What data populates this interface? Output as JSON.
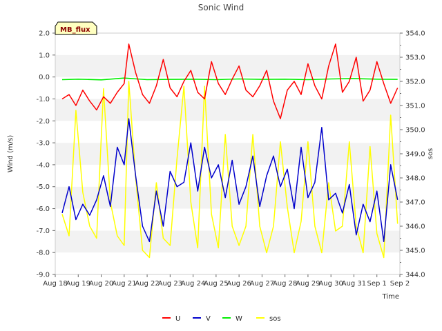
{
  "chart_data": {
    "type": "line",
    "title": "Sonic Wind",
    "badge": "MB_flux",
    "xlabel": "Time",
    "ylabel": "Wind (m/s)",
    "y2label": "sos",
    "x_tick_labels": [
      "Aug 18",
      "Aug 19",
      "Aug 20",
      "Aug 21",
      "Aug 22",
      "Aug 23",
      "Aug 24",
      "Aug 25",
      "Aug 26",
      "Aug 27",
      "Aug 28",
      "Aug 29",
      "Aug 30",
      "Aug 31",
      "Sep 1",
      "Sep 2"
    ],
    "ylim": [
      -9.0,
      2.0
    ],
    "y_ticks": [
      "-9.0",
      "-8.0",
      "-7.0",
      "-6.0",
      "-5.0",
      "-4.0",
      "-3.0",
      "-2.0",
      "-1.0",
      "0.0",
      "1.0",
      "2.0"
    ],
    "y2lim": [
      344.0,
      354.0
    ],
    "y2_ticks": [
      "344.0",
      "345.0",
      "346.0",
      "347.0",
      "348.0",
      "349.0",
      "350.0",
      "351.0",
      "352.0",
      "353.0",
      "354.0"
    ],
    "colors": {
      "U": "#ff0000",
      "V": "#0000cc",
      "W": "#00ee00",
      "sos": "#ffff00"
    },
    "series": [
      {
        "name": "U",
        "axis": "left",
        "x": [
          0.3,
          0.6,
          0.9,
          1.2,
          1.5,
          1.8,
          2.1,
          2.4,
          2.7,
          3.0,
          3.2,
          3.5,
          3.8,
          4.1,
          4.4,
          4.7,
          5.0,
          5.3,
          5.6,
          5.9,
          6.2,
          6.5,
          6.8,
          7.1,
          7.4,
          7.7,
          8.0,
          8.3,
          8.6,
          8.9,
          9.2,
          9.5,
          9.8,
          10.1,
          10.4,
          10.7,
          11.0,
          11.3,
          11.6,
          11.9,
          12.2,
          12.5,
          12.8,
          13.1,
          13.4,
          13.7,
          14.0,
          14.3,
          14.6,
          14.9
        ],
        "values": [
          -1.0,
          -0.8,
          -1.3,
          -0.6,
          -1.1,
          -1.5,
          -0.9,
          -1.2,
          -0.7,
          -0.3,
          1.5,
          0.2,
          -0.8,
          -1.2,
          -0.4,
          0.8,
          -0.5,
          -0.9,
          -0.2,
          0.3,
          -0.7,
          -1.0,
          0.7,
          -0.3,
          -0.8,
          -0.1,
          0.5,
          -0.6,
          -0.9,
          -0.4,
          0.3,
          -1.1,
          -1.9,
          -0.6,
          -0.2,
          -0.8,
          0.6,
          -0.4,
          -1.0,
          0.5,
          1.5,
          -0.7,
          -0.2,
          0.9,
          -1.1,
          -0.6,
          0.7,
          -0.3,
          -1.2,
          -0.5
        ]
      },
      {
        "name": "V",
        "axis": "left",
        "x": [
          0.3,
          0.6,
          0.9,
          1.2,
          1.5,
          1.8,
          2.1,
          2.4,
          2.7,
          3.0,
          3.2,
          3.5,
          3.8,
          4.1,
          4.4,
          4.7,
          5.0,
          5.3,
          5.6,
          5.9,
          6.2,
          6.5,
          6.8,
          7.1,
          7.4,
          7.7,
          8.0,
          8.3,
          8.6,
          8.9,
          9.2,
          9.5,
          9.8,
          10.1,
          10.4,
          10.7,
          11.0,
          11.3,
          11.6,
          11.9,
          12.2,
          12.5,
          12.8,
          13.1,
          13.4,
          13.7,
          14.0,
          14.3,
          14.6,
          14.9
        ],
        "values": [
          -6.2,
          -5.0,
          -6.5,
          -5.8,
          -6.3,
          -5.6,
          -4.5,
          -5.9,
          -3.2,
          -4.0,
          -1.9,
          -4.5,
          -6.8,
          -7.5,
          -5.2,
          -6.8,
          -4.3,
          -5.0,
          -4.8,
          -3.0,
          -5.2,
          -3.2,
          -4.6,
          -4.0,
          -5.5,
          -3.8,
          -5.8,
          -5.0,
          -3.6,
          -5.9,
          -4.5,
          -3.6,
          -5.0,
          -4.2,
          -6.0,
          -3.2,
          -5.5,
          -4.8,
          -2.3,
          -5.6,
          -5.3,
          -6.2,
          -4.9,
          -7.2,
          -5.8,
          -6.6,
          -5.2,
          -7.5,
          -4.0,
          -5.6
        ]
      },
      {
        "name": "W",
        "axis": "left",
        "x": [
          0.3,
          1.0,
          2.0,
          3.0,
          4.0,
          5.0,
          6.0,
          7.0,
          8.0,
          9.0,
          10.0,
          11.0,
          12.0,
          13.0,
          14.0,
          14.9
        ],
        "values": [
          -0.12,
          -0.1,
          -0.13,
          -0.05,
          -0.12,
          -0.11,
          -0.1,
          -0.12,
          -0.09,
          -0.11,
          -0.1,
          -0.12,
          -0.09,
          -0.07,
          -0.1,
          -0.11
        ]
      },
      {
        "name": "sos",
        "axis": "right",
        "x": [
          0.3,
          0.6,
          0.9,
          1.2,
          1.5,
          1.8,
          2.1,
          2.4,
          2.7,
          3.0,
          3.2,
          3.5,
          3.8,
          4.1,
          4.4,
          4.7,
          5.0,
          5.3,
          5.6,
          5.9,
          6.2,
          6.5,
          6.8,
          7.1,
          7.4,
          7.7,
          8.0,
          8.3,
          8.6,
          8.9,
          9.2,
          9.5,
          9.8,
          10.1,
          10.4,
          10.7,
          11.0,
          11.3,
          11.6,
          11.9,
          12.2,
          12.5,
          12.8,
          13.1,
          13.4,
          13.7,
          14.0,
          14.3,
          14.6,
          14.9
        ],
        "values": [
          346.5,
          345.6,
          350.8,
          347.4,
          346.0,
          345.5,
          351.7,
          347.0,
          345.6,
          345.2,
          352.0,
          348.0,
          345.0,
          344.7,
          347.8,
          345.5,
          345.2,
          348.8,
          351.8,
          347.0,
          345.1,
          351.8,
          346.5,
          345.1,
          349.8,
          346.0,
          345.2,
          346.0,
          349.8,
          346.0,
          344.9,
          346.0,
          349.5,
          346.8,
          344.9,
          346.2,
          349.5,
          346.0,
          344.9,
          347.8,
          345.8,
          346.0,
          349.5,
          346.0,
          344.9,
          349.3,
          345.7,
          344.7,
          350.6,
          346.1
        ]
      }
    ]
  }
}
